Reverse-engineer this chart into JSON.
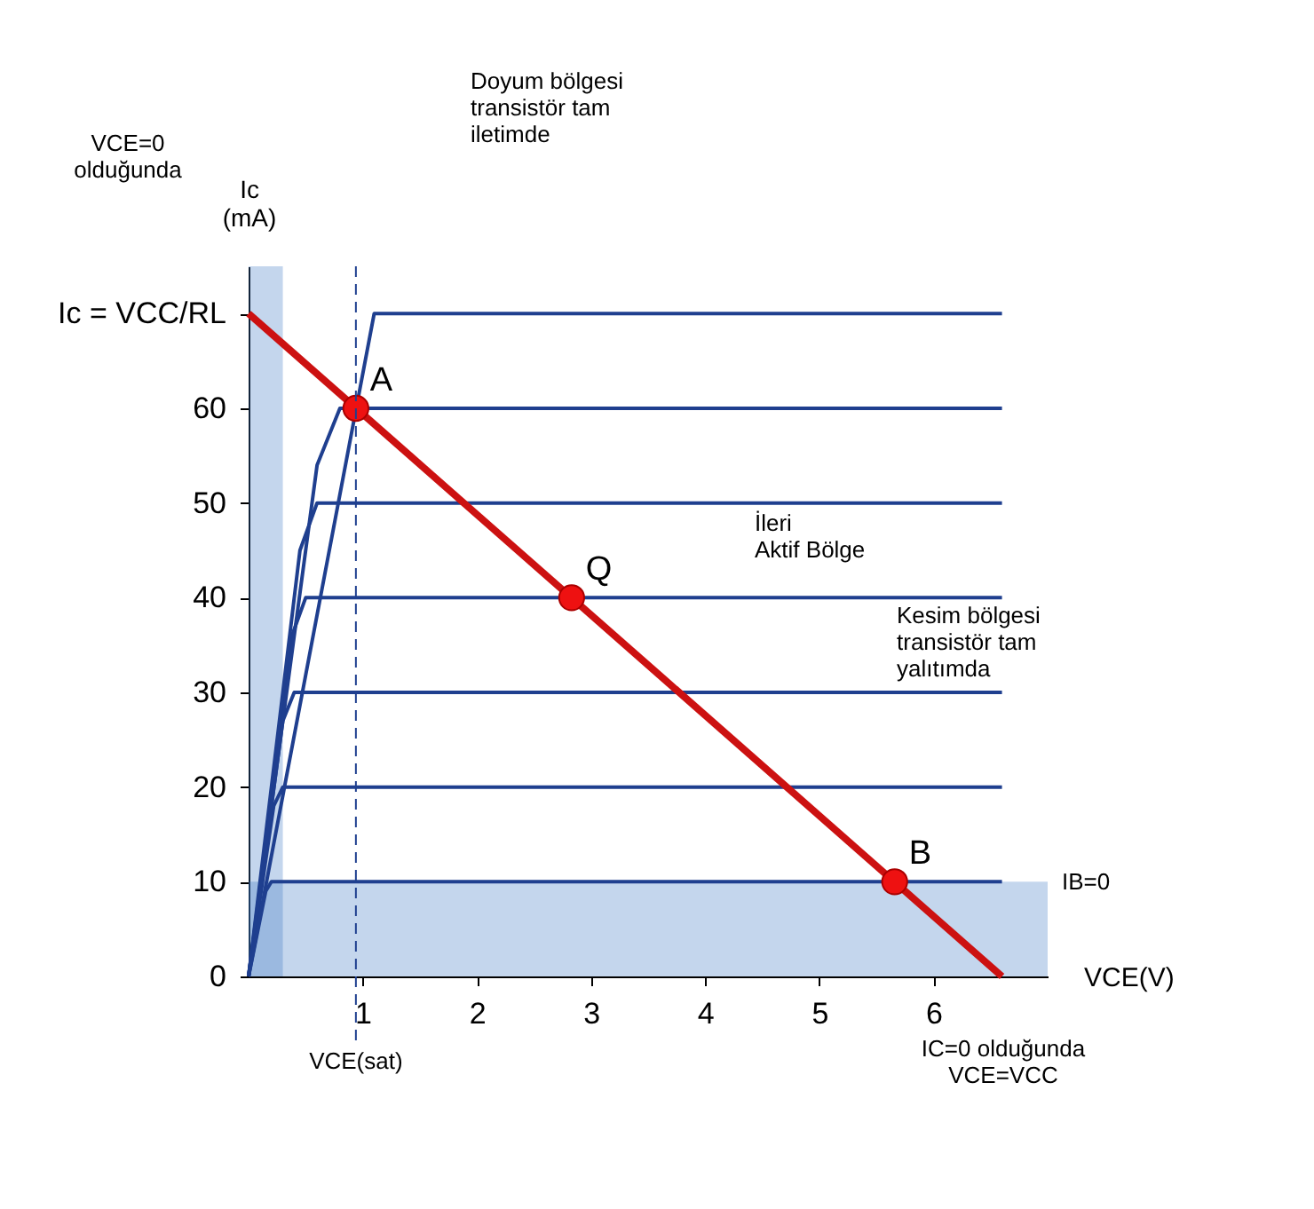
{
  "chart_data": {
    "type": "line",
    "xlabel": "VCE(V)",
    "ylabel": "Ic\n(mA)",
    "xlim": [
      0,
      7
    ],
    "ylim": [
      0,
      75
    ],
    "xticks": [
      1,
      2,
      3,
      4,
      5,
      6
    ],
    "yticks": [
      0,
      10,
      20,
      30,
      40,
      50,
      60,
      {
        "value": 70,
        "label": "Ic = VCC/RL"
      }
    ],
    "grid": false,
    "series": [
      {
        "color": "#1f3f8f",
        "x": [
          0,
          0.15,
          0.2,
          6.6
        ],
        "values": [
          0,
          9,
          10,
          10
        ]
      },
      {
        "color": "#1f3f8f",
        "x": [
          0,
          0.22,
          0.3,
          6.6
        ],
        "values": [
          0,
          18,
          20,
          20
        ]
      },
      {
        "color": "#1f3f8f",
        "x": [
          0,
          0.3,
          0.4,
          6.6
        ],
        "values": [
          0,
          27,
          30,
          30
        ]
      },
      {
        "color": "#1f3f8f",
        "x": [
          0,
          0.38,
          0.5,
          6.6
        ],
        "values": [
          0,
          36,
          40,
          40
        ]
      },
      {
        "color": "#1f3f8f",
        "x": [
          0,
          0.45,
          0.6,
          6.6
        ],
        "values": [
          0,
          45,
          50,
          50
        ]
      },
      {
        "color": "#1f3f8f",
        "x": [
          0,
          0.6,
          0.8,
          6.6
        ],
        "values": [
          0,
          54,
          60,
          60
        ]
      },
      {
        "color": "#1f3f8f",
        "x": [
          0,
          1.1,
          6.6
        ],
        "values": [
          0,
          70,
          70
        ]
      },
      {
        "color": "#cc1111",
        "x": [
          0,
          6.6
        ],
        "values": [
          70,
          0
        ]
      },
      {
        "type": "scatter",
        "marker": "circle",
        "color": "#ee1111",
        "x": [
          0.94,
          2.83,
          5.66
        ],
        "values": [
          60,
          40,
          10
        ]
      }
    ],
    "bands": [
      {
        "axis": "y",
        "from": 0,
        "to": 10,
        "color": "#3a78c2"
      },
      {
        "axis": "x",
        "from": 0,
        "to": 0.3,
        "color": "#3a78c2"
      }
    ],
    "ref_lines": [
      {
        "axis": "x",
        "value": 0.94,
        "label": "VCE(sat)",
        "line_style": "dashed",
        "color": "#1f3f8f"
      }
    ],
    "annotations": [
      "Doyum bölgesi\ntransistör tam\niletimde",
      "VCE=0\nolduğunda",
      "İleri\nAktif Bölge",
      "Kesim bölgesi\ntransistör tam\nyalıtımda",
      "IB=0",
      "IC=0 olduğunda\nVCE=VCC",
      {
        "text": "A",
        "x": 0.94,
        "y": 60
      },
      {
        "text": "Q",
        "x": 2.83,
        "y": 40
      },
      {
        "text": "B",
        "x": 5.66,
        "y": 10
      }
    ]
  }
}
